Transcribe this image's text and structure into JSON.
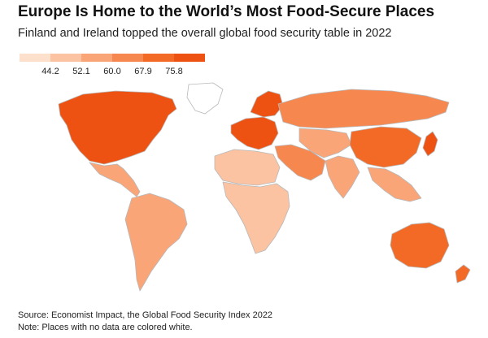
{
  "header": {
    "title": "Europe Is Home to the World’s Most Food-Secure Places",
    "subtitle": "Finland and Ireland topped the overall global food security table in 2022"
  },
  "legend": {
    "ticks": [
      "44.2",
      "52.1",
      "60.0",
      "67.9",
      "75.8"
    ],
    "colors": [
      "#fde0cc",
      "#fbc3a2",
      "#f9a578",
      "#f6884f",
      "#f26a26",
      "#ee5212"
    ]
  },
  "map": {
    "no_data_color": "#ffffff",
    "border_color": "#b8b8b8",
    "regions": [
      {
        "name": "north-america-icon",
        "tier": 5
      },
      {
        "name": "greenland-icon",
        "tier": -1
      },
      {
        "name": "central-america-icon",
        "tier": 2
      },
      {
        "name": "south-america-icon",
        "tier": 2
      },
      {
        "name": "europe-icon",
        "tier": 5
      },
      {
        "name": "scandinavia-icon",
        "tier": 5
      },
      {
        "name": "russia-icon",
        "tier": 3
      },
      {
        "name": "middle-east-icon",
        "tier": 3
      },
      {
        "name": "north-africa-icon",
        "tier": 1
      },
      {
        "name": "sub-saharan-africa-icon",
        "tier": 1
      },
      {
        "name": "central-asia-icon",
        "tier": 2
      },
      {
        "name": "south-asia-icon",
        "tier": 2
      },
      {
        "name": "china-icon",
        "tier": 4
      },
      {
        "name": "southeast-asia-icon",
        "tier": 2
      },
      {
        "name": "japan-icon",
        "tier": 5
      },
      {
        "name": "australia-icon",
        "tier": 4
      },
      {
        "name": "new-zealand-icon",
        "tier": 4
      }
    ]
  },
  "footer": {
    "source": "Source: Economist Impact, the Global Food Security Index 2022",
    "note": "Note: Places with no data are colored white."
  }
}
